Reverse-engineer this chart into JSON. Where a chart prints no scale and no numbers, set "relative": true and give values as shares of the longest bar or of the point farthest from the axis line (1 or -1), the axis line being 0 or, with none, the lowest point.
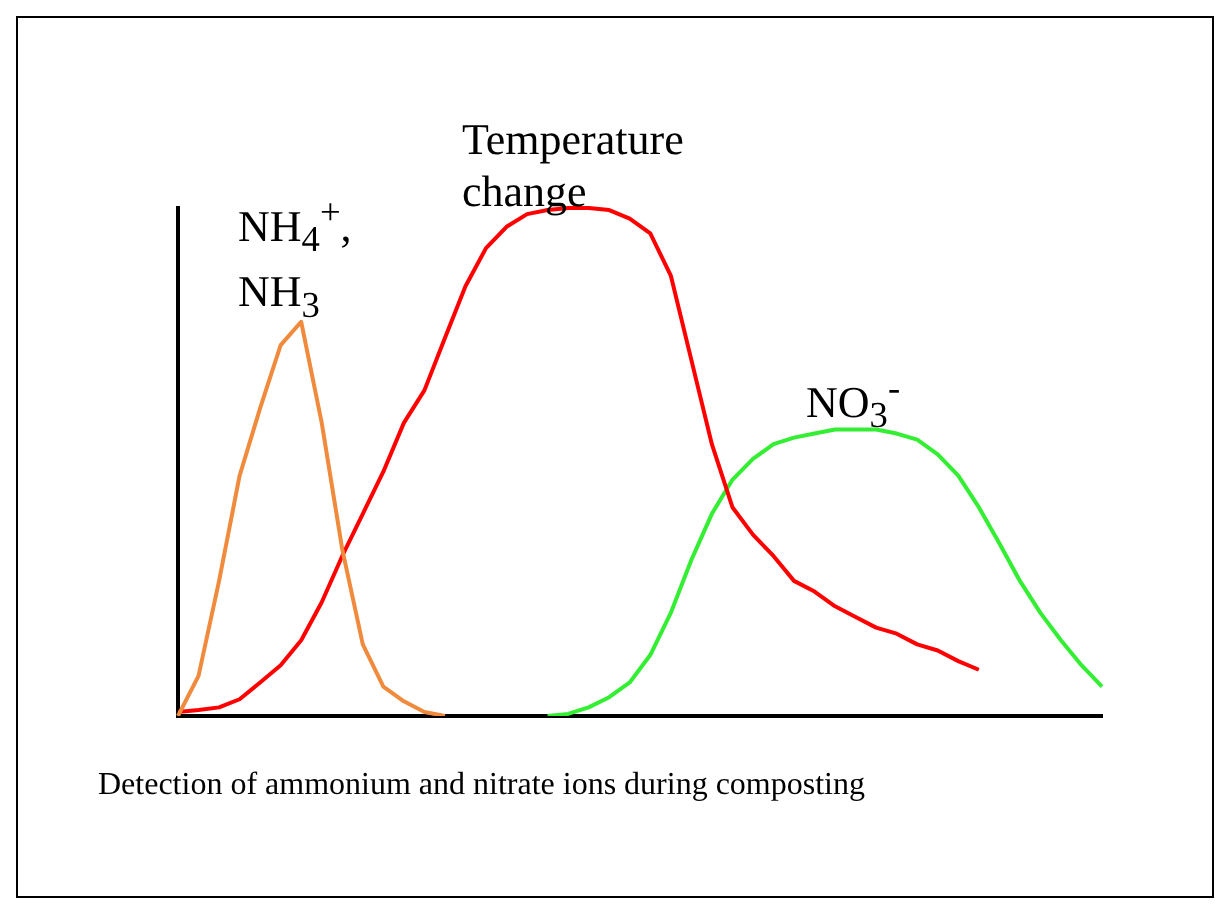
{
  "chart_data": {
    "type": "line",
    "relative": true,
    "categories": [
      null,
      null,
      null,
      null,
      null,
      null,
      null,
      null,
      null,
      null,
      null,
      null,
      null,
      null,
      null,
      null,
      null,
      null,
      null,
      null,
      null,
      null,
      null,
      null,
      null,
      null,
      null,
      null,
      null,
      null,
      null,
      null,
      null,
      null,
      null,
      null,
      null,
      null,
      null,
      null,
      null,
      null,
      null,
      null,
      null,
      null
    ],
    "series": [
      {
        "name": "NH$_{4}$$^{+}$, NH$_{3}$",
        "color": "#f08a3c",
        "values": [
          0,
          0.079,
          0.266,
          0.473,
          0.606,
          0.73,
          0.776,
          0.577,
          0.328,
          0.141,
          0.058,
          0.029,
          0.008,
          0,
          null,
          null,
          null,
          null,
          null,
          null,
          null,
          null,
          null,
          null,
          null,
          null,
          null,
          null,
          null,
          null,
          null,
          null,
          null,
          null,
          null,
          null,
          null,
          null,
          null,
          null,
          null,
          null,
          null,
          null,
          null,
          null
        ]
      },
      {
        "name": "Temperature change",
        "color": "#ff0000",
        "values": [
          0.008,
          0.012,
          0.017,
          0.033,
          0.066,
          0.1,
          0.149,
          0.224,
          0.315,
          0.398,
          0.481,
          0.577,
          0.641,
          0.744,
          0.846,
          0.921,
          0.963,
          0.988,
          0.996,
          1,
          1,
          0.996,
          0.979,
          0.95,
          0.867,
          0.701,
          0.535,
          0.411,
          0.357,
          0.315,
          0.266,
          0.245,
          0.216,
          0.195,
          0.174,
          0.162,
          0.141,
          0.129,
          0.108,
          0.091,
          null,
          null,
          null,
          null,
          null,
          null
        ]
      },
      {
        "name": "NO$_{3}$$^{-}$",
        "color": "#33ee33",
        "values": [
          null,
          null,
          null,
          null,
          null,
          null,
          null,
          null,
          null,
          null,
          null,
          null,
          null,
          null,
          null,
          null,
          null,
          null,
          0,
          0.004,
          0.017,
          0.037,
          0.066,
          0.12,
          0.203,
          0.307,
          0.398,
          0.465,
          0.506,
          0.535,
          0.548,
          0.556,
          0.564,
          0.564,
          0.564,
          0.556,
          0.544,
          0.515,
          0.473,
          0.411,
          0.34,
          0.266,
          0.203,
          0.149,
          0.1,
          0.058
        ]
      }
    ],
    "annotations": [
      "Detection of ammonium and nitrate ions during composting"
    ]
  }
}
